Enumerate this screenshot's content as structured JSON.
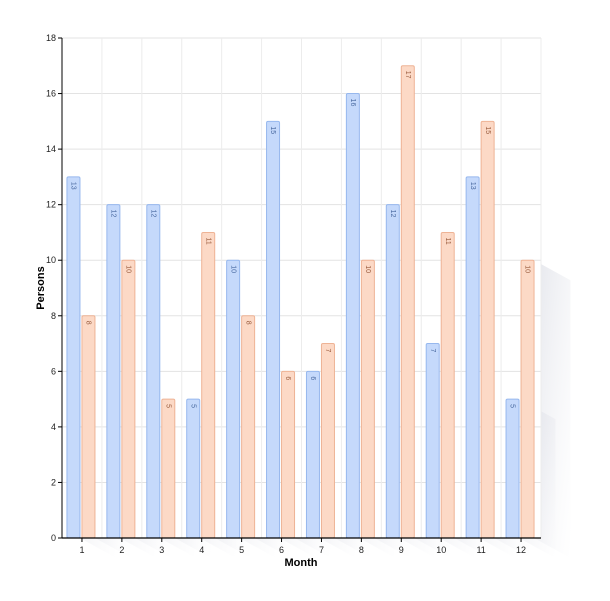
{
  "chart_data": {
    "type": "bar",
    "xlabel": "Month",
    "ylabel": "Persons",
    "ylim": [
      0,
      18
    ],
    "yticks": [
      0,
      2,
      4,
      6,
      8,
      10,
      12,
      14,
      16,
      18
    ],
    "grid": true,
    "categories": [
      "1",
      "2",
      "3",
      "4",
      "5",
      "6",
      "7",
      "8",
      "9",
      "10",
      "11",
      "12"
    ],
    "series": [
      {
        "values": [
          13,
          12,
          12,
          5,
          10,
          15,
          6,
          16,
          12,
          7,
          13,
          5
        ],
        "color": "#c5d9fb",
        "border": "#97b8ee",
        "label_color": "#4a6aa0"
      },
      {
        "values": [
          8,
          10,
          5,
          11,
          8,
          6,
          7,
          10,
          17,
          11,
          15,
          10
        ],
        "color": "#fcd9c6",
        "border": "#eeb395",
        "label_color": "#9a5c3e"
      }
    ],
    "data_labels": true
  }
}
